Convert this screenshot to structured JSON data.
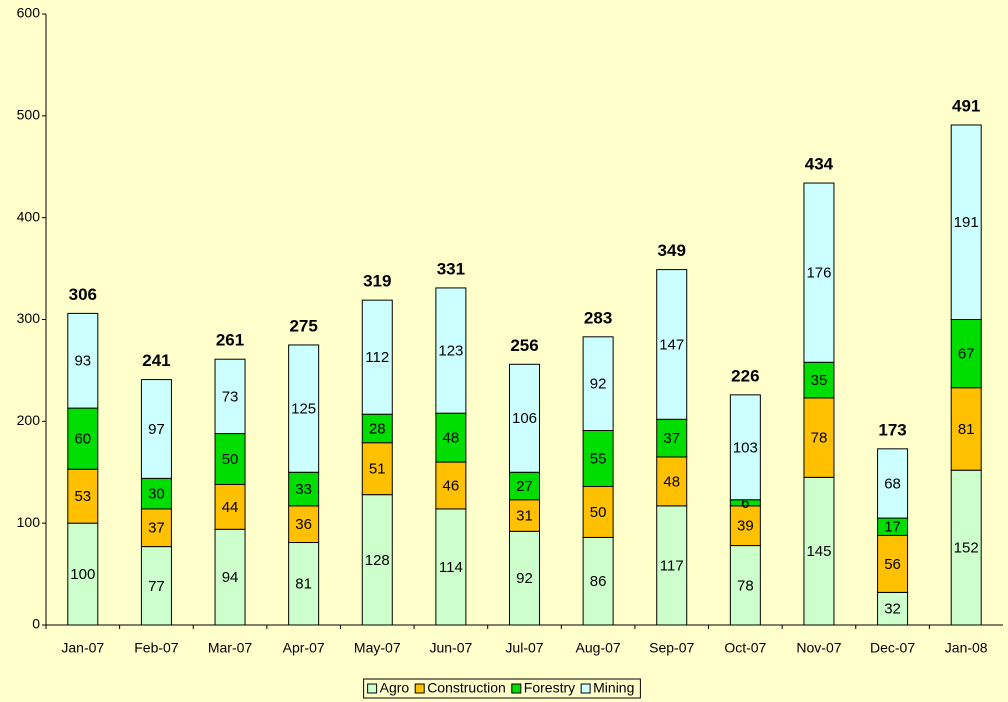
{
  "chart_data": {
    "type": "stacked_bar",
    "categories": [
      "Jan-07",
      "Feb-07",
      "Mar-07",
      "Apr-07",
      "May-07",
      "Jun-07",
      "Jul-07",
      "Aug-07",
      "Sep-07",
      "Oct-07",
      "Nov-07",
      "Dec-07",
      "Jan-08"
    ],
    "series": [
      {
        "name": "Agro",
        "color": "#ccffcc",
        "values": [
          100,
          77,
          94,
          81,
          128,
          114,
          92,
          86,
          117,
          78,
          145,
          32,
          152
        ]
      },
      {
        "name": "Construction",
        "color": "#ffc000",
        "values": [
          53,
          37,
          44,
          36,
          51,
          46,
          31,
          50,
          48,
          39,
          78,
          56,
          81
        ]
      },
      {
        "name": "Forestry",
        "color": "#00dd00",
        "values": [
          60,
          30,
          50,
          33,
          28,
          48,
          27,
          55,
          37,
          6,
          35,
          17,
          67
        ]
      },
      {
        "name": "Mining",
        "color": "#ccffff",
        "values": [
          93,
          97,
          73,
          125,
          112,
          123,
          106,
          92,
          147,
          103,
          176,
          68,
          191
        ]
      }
    ],
    "totals": [
      306,
      241,
      261,
      275,
      319,
      331,
      256,
      283,
      349,
      226,
      434,
      173,
      491
    ],
    "ylim": [
      0,
      600
    ],
    "yticks": [
      0,
      100,
      200,
      300,
      400,
      500,
      600
    ],
    "grid": false,
    "legend": "bottom"
  }
}
